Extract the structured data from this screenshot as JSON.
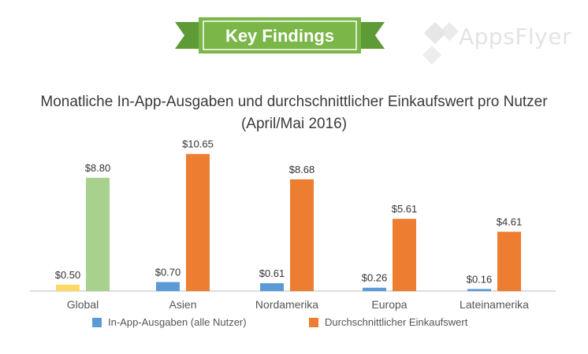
{
  "banner": {
    "title": "Key Findings",
    "logo": "AppsFlyer",
    "banner_color": "#7ab648"
  },
  "chart_data": {
    "type": "bar",
    "title": "Monatliche In-App-Ausgaben und durchschnittlicher Einkaufswert pro Nutzer",
    "subtitle": "(April/Mai 2016)",
    "categories": [
      "Global",
      "Asien",
      "Nordamerika",
      "Europa",
      "Lateinamerika"
    ],
    "series": [
      {
        "name": "In-App-Ausgaben (alle Nutzer)",
        "color": "#5b9bd5",
        "values": [
          0.5,
          0.7,
          0.61,
          0.26,
          0.16
        ],
        "labels": [
          "$0.50",
          "$0.70",
          "$0.61",
          "$0.26",
          "$0.16"
        ]
      },
      {
        "name": "Durchschnittlicher Einkaufswert",
        "color": "#ed7d31",
        "values": [
          8.8,
          10.65,
          8.68,
          5.61,
          4.61
        ],
        "labels": [
          "$8.80",
          "$10.65",
          "$8.68",
          "$5.61",
          "$4.61"
        ]
      }
    ],
    "highlight_colors": {
      "Global": [
        "#ffd966",
        "#a9d18e"
      ]
    },
    "ylim": [
      0,
      11
    ],
    "grid": false,
    "legend_position": "bottom"
  }
}
